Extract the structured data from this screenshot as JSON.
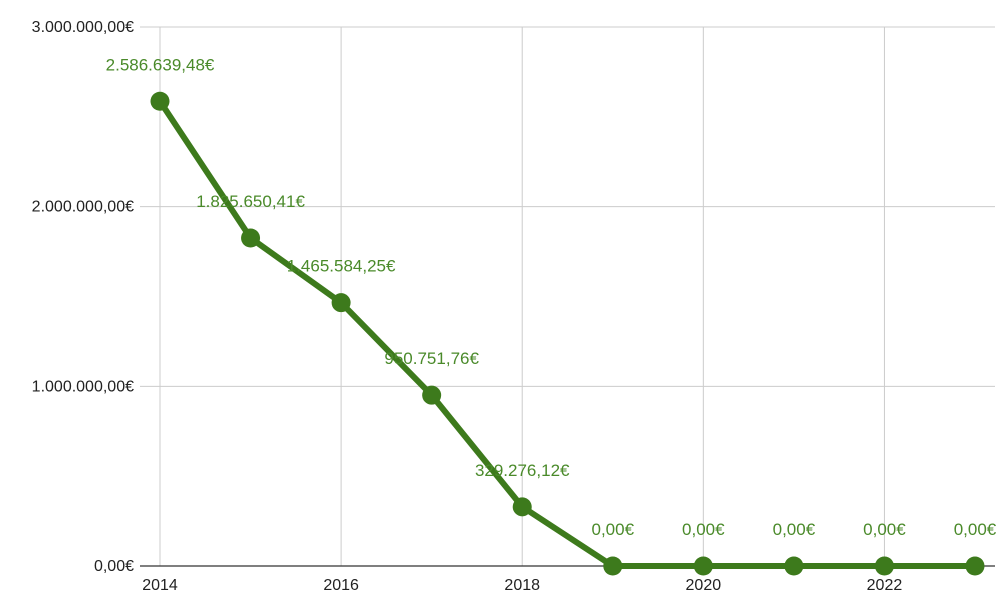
{
  "chart_data": {
    "type": "line",
    "title": "",
    "xlabel": "",
    "ylabel": "",
    "x": [
      2014,
      2015,
      2016,
      2017,
      2018,
      2019,
      2020,
      2021,
      2022,
      2023
    ],
    "series": [
      {
        "values": [
          2586639.48,
          1825650.41,
          1465584.25,
          950751.76,
          329276.12,
          0,
          0,
          0,
          0,
          0
        ],
        "labels": [
          "2.586.639,48€",
          "1.825.650,41€",
          "1.465.584,25€",
          "950.751,76€",
          "329.276,12€",
          "0,00€",
          "0,00€",
          "0,00€",
          "0,00€",
          "0,00€"
        ]
      }
    ],
    "ylim": [
      0,
      3000000
    ],
    "y_ticks": [
      0,
      1000000,
      2000000,
      3000000
    ],
    "y_tick_labels": [
      "0,00€",
      "1.000.000,00€",
      "2.000.000,00€",
      "3.000.000,00€"
    ],
    "x_ticks": [
      2014,
      2016,
      2018,
      2020,
      2022
    ],
    "x_tick_labels": [
      "2014",
      "2016",
      "2018",
      "2020",
      "2022"
    ],
    "xlim": [
      2014,
      2023
    ],
    "grid": true,
    "legend": "none",
    "colors": {
      "line": "#3d7a1c",
      "label": "#4a8a2a",
      "grid": "#cccccc"
    }
  }
}
